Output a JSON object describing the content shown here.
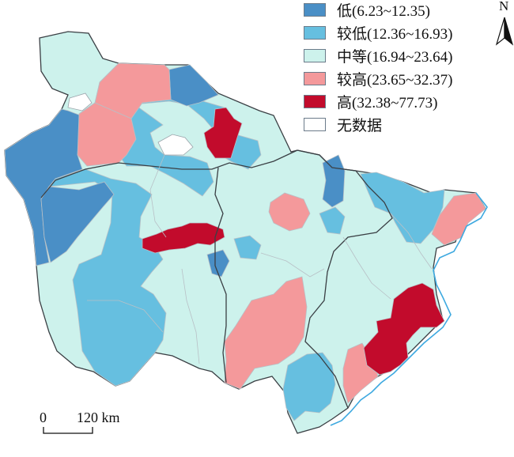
{
  "legend": {
    "items": [
      {
        "label": "低(6.23~12.35)",
        "color": "#4a8fc6"
      },
      {
        "label": "较低(12.36~16.93)",
        "color": "#66bfe0"
      },
      {
        "label": "中等(16.94~23.64)",
        "color": "#cdf2ec"
      },
      {
        "label": "较高(23.65~32.37)",
        "color": "#f4999b"
      },
      {
        "label": "高(32.38~77.73)",
        "color": "#c20b2c"
      },
      {
        "label": "无数据",
        "color": "#ffffff"
      }
    ]
  },
  "north_arrow": {
    "label": "N"
  },
  "scale_bar": {
    "zero": "0",
    "distance": "120 km"
  },
  "colors": {
    "boundary": "#3a3f44",
    "inner_line": "#b8c0c6",
    "coast": "#3ea9e0"
  }
}
